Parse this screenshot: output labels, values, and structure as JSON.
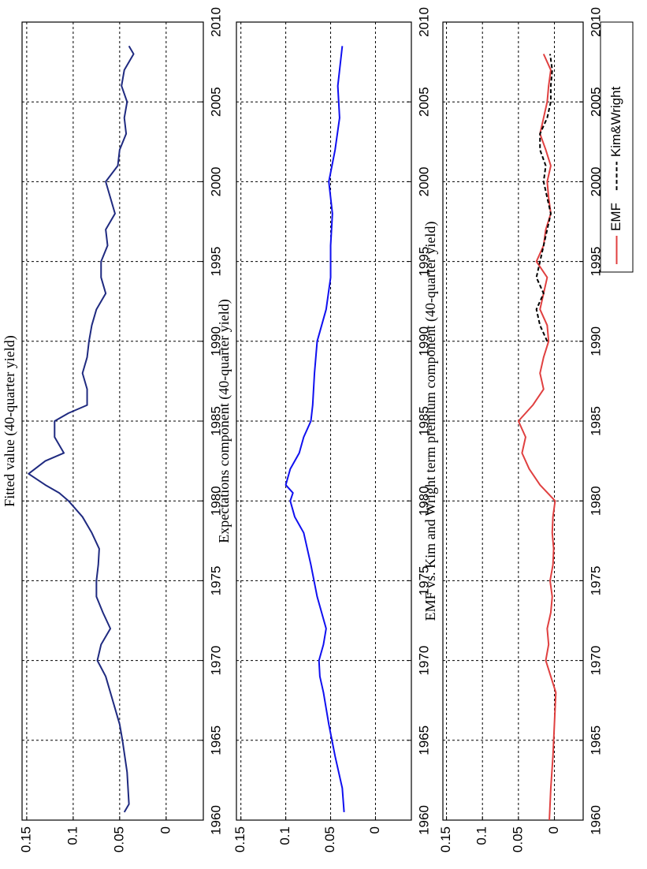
{
  "chart_data": [
    {
      "type": "line",
      "title": "Fitted value (40-quarter yield)",
      "grid": true,
      "xlim": [
        1960,
        2010
      ],
      "xticks": [
        1960,
        1965,
        1970,
        1975,
        1980,
        1985,
        1990,
        1995,
        2000,
        2005,
        2010
      ],
      "ylim": [
        -0.04,
        0.155
      ],
      "yticks": [
        0,
        0.05,
        0.1,
        0.15
      ],
      "x": [
        1960.5,
        1961,
        1963,
        1965,
        1966,
        1967,
        1968,
        1969,
        1970,
        1971,
        1972,
        1973,
        1974,
        1975,
        1976,
        1977,
        1978,
        1979,
        1980,
        1980.5,
        1981,
        1981.7,
        1982.5,
        1983,
        1984,
        1985,
        1985.5,
        1986,
        1987,
        1988,
        1989,
        1990,
        1991,
        1992,
        1993,
        1994,
        1995,
        1996,
        1997,
        1998,
        1999,
        2000,
        2001,
        2002,
        2003,
        2004,
        2005,
        2006,
        2007,
        2008,
        2008.5
      ],
      "series": [
        {
          "color": "#1f2a80",
          "values": [
            0.045,
            0.04,
            0.042,
            0.047,
            0.05,
            0.055,
            0.06,
            0.065,
            0.074,
            0.07,
            0.06,
            0.068,
            0.075,
            0.075,
            0.073,
            0.072,
            0.08,
            0.09,
            0.105,
            0.115,
            0.13,
            0.148,
            0.13,
            0.11,
            0.12,
            0.12,
            0.105,
            0.085,
            0.085,
            0.09,
            0.085,
            0.083,
            0.08,
            0.075,
            0.065,
            0.07,
            0.07,
            0.063,
            0.065,
            0.055,
            0.06,
            0.065,
            0.052,
            0.05,
            0.043,
            0.045,
            0.042,
            0.048,
            0.045,
            0.035,
            0.04
          ]
        }
      ]
    },
    {
      "type": "line",
      "title": "Expectations component  (40-quarter yield)",
      "grid": true,
      "xlim": [
        1960,
        2010
      ],
      "xticks": [
        1960,
        1965,
        1970,
        1975,
        1980,
        1985,
        1990,
        1995,
        2000,
        2005,
        2010
      ],
      "ylim": [
        -0.04,
        0.155
      ],
      "yticks": [
        0,
        0.05,
        0.1,
        0.15
      ],
      "x": [
        1960.5,
        1962,
        1964,
        1966,
        1968,
        1969,
        1970,
        1971,
        1972,
        1974,
        1976,
        1978,
        1979,
        1980,
        1980.5,
        1981,
        1982,
        1983,
        1984,
        1985,
        1986,
        1988,
        1990,
        1992,
        1994,
        1996,
        1998,
        2000,
        2002,
        2004,
        2006,
        2008,
        2008.5
      ],
      "series": [
        {
          "color": "#1010f0",
          "values": [
            0.035,
            0.037,
            0.045,
            0.052,
            0.058,
            0.062,
            0.063,
            0.058,
            0.055,
            0.065,
            0.072,
            0.08,
            0.09,
            0.095,
            0.092,
            0.1,
            0.095,
            0.085,
            0.08,
            0.072,
            0.07,
            0.068,
            0.065,
            0.055,
            0.05,
            0.05,
            0.048,
            0.052,
            0.045,
            0.04,
            0.042,
            0.038,
            0.037
          ]
        }
      ]
    },
    {
      "type": "line",
      "title": "EMF vs. Kim and Wright term premium component  (40-quarter yield)",
      "grid": true,
      "legend": "south",
      "xlim": [
        1960,
        2010
      ],
      "xticks": [
        1960,
        1965,
        1970,
        1975,
        1980,
        1985,
        1990,
        1995,
        2000,
        2005,
        2010
      ],
      "ylim": [
        -0.04,
        0.155
      ],
      "yticks": [
        0,
        0.05,
        0.1,
        0.15
      ],
      "x": [
        1960,
        1962,
        1964,
        1966,
        1968,
        1969,
        1970,
        1971,
        1972,
        1973,
        1974,
        1975,
        1976,
        1977,
        1978,
        1979,
        1980,
        1981,
        1982,
        1983,
        1984,
        1985,
        1986,
        1987,
        1988,
        1989,
        1990,
        1991,
        1992,
        1993,
        1994,
        1995,
        1996,
        1997,
        1998,
        1999,
        2000,
        2001,
        2002,
        2003,
        2004,
        2005,
        2006,
        2007,
        2008
      ],
      "series": [
        {
          "name": "EMF",
          "color": "#e04040",
          "dash": false,
          "values": [
            0.007,
            0.005,
            0.002,
            0,
            -0.002,
            0.005,
            0.012,
            0.008,
            0.01,
            0.005,
            0.003,
            0.006,
            0.002,
            0.001,
            0.003,
            0.002,
            -0.001,
            0.02,
            0.035,
            0.045,
            0.04,
            0.05,
            0.03,
            0.015,
            0.02,
            0.015,
            0.008,
            0.01,
            0.02,
            0.015,
            0.01,
            0.025,
            0.015,
            0.012,
            0.005,
            0.008,
            0.01,
            0.005,
            0.012,
            0.02,
            0.015,
            0.01,
            0.008,
            0.005,
            0.015
          ]
        },
        {
          "name": "Kim&Wright",
          "color": "#000000",
          "dash": true,
          "values": [
            null,
            null,
            null,
            null,
            null,
            null,
            null,
            null,
            null,
            null,
            null,
            null,
            null,
            null,
            null,
            null,
            null,
            null,
            null,
            null,
            null,
            null,
            null,
            null,
            null,
            null,
            0.01,
            0.02,
            0.025,
            0.015,
            0.025,
            0.02,
            0.015,
            0.01,
            0.005,
            0.01,
            0.015,
            0.012,
            0.02,
            0.02,
            0.01,
            0.005,
            0.005,
            0.003,
            0.006
          ]
        }
      ]
    }
  ]
}
